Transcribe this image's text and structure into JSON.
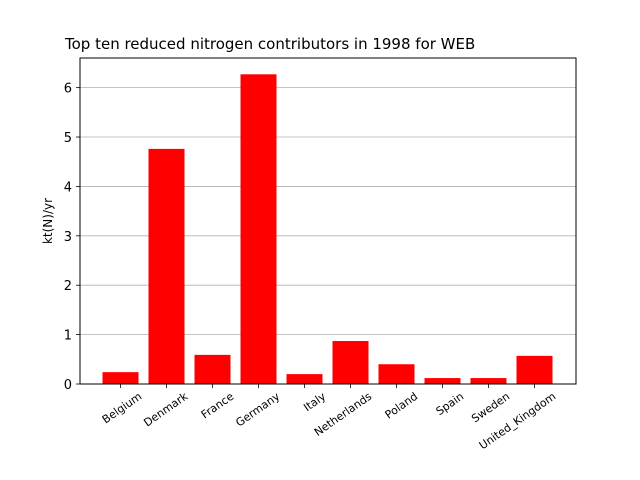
{
  "chart_data": {
    "type": "bar",
    "title": "Top ten reduced nitrogen contributors in 1998 for  WEB",
    "xlabel": "",
    "ylabel": "kt(N)/yr",
    "categories": [
      "Belgium",
      "Denmark",
      "France",
      "Germany",
      "Italy",
      "Netherlands",
      "Poland",
      "Spain",
      "Sweden",
      "United_Kingdom"
    ],
    "values": [
      0.24,
      4.76,
      0.59,
      6.27,
      0.2,
      0.87,
      0.4,
      0.12,
      0.12,
      0.57
    ],
    "ylim": [
      0,
      6.6
    ],
    "yticks": [
      0,
      1,
      2,
      3,
      4,
      5,
      6
    ],
    "grid": "y",
    "bar_color": "#ff0000"
  }
}
